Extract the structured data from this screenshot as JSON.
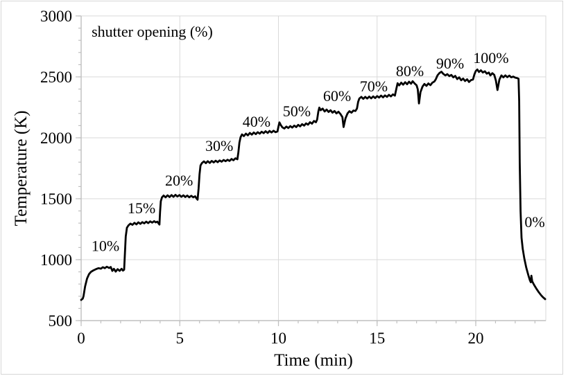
{
  "figure": {
    "background": "#ffffff",
    "border_color": "#d6d6d6"
  },
  "chart_data": {
    "type": "line",
    "title": "",
    "xlabel": "Time (min)",
    "ylabel": "Temperature (K)",
    "xlim": [
      0,
      23.55
    ],
    "ylim": [
      500,
      3000
    ],
    "x_ticks": [
      0,
      5,
      10,
      15,
      20
    ],
    "x_minor_step": 1,
    "y_ticks": [
      500,
      1000,
      1500,
      2000,
      2500,
      3000
    ],
    "y_minor_step": 100,
    "grid": true,
    "legend": "none",
    "line_color": "#000000",
    "gridline_color": "#d9d9d9",
    "axis_color": "#bfbfbf",
    "annotations": [
      {
        "text": "shutter opening (%)",
        "t": 0.53,
        "T": 2830,
        "anchor": "start",
        "size": 23
      },
      {
        "text": "10%",
        "t": 1.23,
        "T": 1070,
        "anchor": "middle",
        "size": 22
      },
      {
        "text": "15%",
        "t": 3.06,
        "T": 1380,
        "anchor": "middle",
        "size": 22
      },
      {
        "text": "20%",
        "t": 4.96,
        "T": 1608,
        "anchor": "middle",
        "size": 22
      },
      {
        "text": "30%",
        "t": 7.0,
        "T": 1892,
        "anchor": "middle",
        "size": 22
      },
      {
        "text": "40%",
        "t": 8.89,
        "T": 2090,
        "anchor": "middle",
        "size": 22
      },
      {
        "text": "50%",
        "t": 10.93,
        "T": 2176,
        "anchor": "middle",
        "size": 22
      },
      {
        "text": "60%",
        "t": 12.97,
        "T": 2300,
        "anchor": "middle",
        "size": 22
      },
      {
        "text": "70%",
        "t": 14.83,
        "T": 2380,
        "anchor": "middle",
        "size": 22
      },
      {
        "text": "80%",
        "t": 16.66,
        "T": 2505,
        "anchor": "middle",
        "size": 22
      },
      {
        "text": "90%",
        "t": 18.7,
        "T": 2568,
        "anchor": "middle",
        "size": 22
      },
      {
        "text": "100%",
        "t": 20.77,
        "T": 2613,
        "anchor": "middle",
        "size": 22
      },
      {
        "text": "0%",
        "t": 22.99,
        "T": 1267,
        "anchor": "middle",
        "size": 22
      }
    ],
    "series": [
      {
        "name": "temperature",
        "points": [
          [
            0,
            670
          ],
          [
            0.08,
            680
          ],
          [
            0.12,
            700
          ],
          [
            0.2,
            780
          ],
          [
            0.3,
            845
          ],
          [
            0.4,
            882
          ],
          [
            0.5,
            900
          ],
          [
            0.62,
            912
          ],
          [
            0.75,
            922
          ],
          [
            0.88,
            930
          ],
          [
            1.0,
            926
          ],
          [
            1.1,
            938
          ],
          [
            1.2,
            930
          ],
          [
            1.3,
            942
          ],
          [
            1.42,
            932
          ],
          [
            1.5,
            940
          ],
          [
            1.58,
            908
          ],
          [
            1.66,
            925
          ],
          [
            1.75,
            902
          ],
          [
            1.85,
            922
          ],
          [
            1.95,
            908
          ],
          [
            2.05,
            925
          ],
          [
            2.12,
            910
          ],
          [
            2.18,
            918
          ],
          [
            2.22,
            1060
          ],
          [
            2.26,
            1190
          ],
          [
            2.32,
            1262
          ],
          [
            2.4,
            1282
          ],
          [
            2.5,
            1296
          ],
          [
            2.6,
            1286
          ],
          [
            2.7,
            1302
          ],
          [
            2.8,
            1290
          ],
          [
            2.9,
            1306
          ],
          [
            3.0,
            1294
          ],
          [
            3.1,
            1308
          ],
          [
            3.2,
            1298
          ],
          [
            3.3,
            1312
          ],
          [
            3.4,
            1300
          ],
          [
            3.5,
            1314
          ],
          [
            3.6,
            1304
          ],
          [
            3.7,
            1316
          ],
          [
            3.78,
            1306
          ],
          [
            3.86,
            1312
          ],
          [
            3.93,
            1296
          ],
          [
            3.97,
            1288
          ],
          [
            4.0,
            1392
          ],
          [
            4.04,
            1480
          ],
          [
            4.1,
            1512
          ],
          [
            4.18,
            1526
          ],
          [
            4.28,
            1512
          ],
          [
            4.38,
            1528
          ],
          [
            4.48,
            1514
          ],
          [
            4.58,
            1530
          ],
          [
            4.68,
            1516
          ],
          [
            4.78,
            1532
          ],
          [
            4.88,
            1518
          ],
          [
            4.98,
            1530
          ],
          [
            5.08,
            1516
          ],
          [
            5.18,
            1528
          ],
          [
            5.28,
            1514
          ],
          [
            5.38,
            1526
          ],
          [
            5.48,
            1512
          ],
          [
            5.58,
            1524
          ],
          [
            5.68,
            1512
          ],
          [
            5.78,
            1520
          ],
          [
            5.85,
            1502
          ],
          [
            5.9,
            1492
          ],
          [
            5.95,
            1580
          ],
          [
            6.0,
            1700
          ],
          [
            6.05,
            1772
          ],
          [
            6.12,
            1792
          ],
          [
            6.22,
            1806
          ],
          [
            6.32,
            1792
          ],
          [
            6.42,
            1808
          ],
          [
            6.52,
            1794
          ],
          [
            6.62,
            1810
          ],
          [
            6.72,
            1798
          ],
          [
            6.82,
            1812
          ],
          [
            6.92,
            1800
          ],
          [
            7.02,
            1814
          ],
          [
            7.12,
            1804
          ],
          [
            7.22,
            1818
          ],
          [
            7.32,
            1808
          ],
          [
            7.42,
            1820
          ],
          [
            7.52,
            1810
          ],
          [
            7.62,
            1826
          ],
          [
            7.72,
            1816
          ],
          [
            7.82,
            1832
          ],
          [
            7.92,
            1824
          ],
          [
            7.97,
            1880
          ],
          [
            8.02,
            1960
          ],
          [
            8.08,
            2005
          ],
          [
            8.15,
            2028
          ],
          [
            8.25,
            2014
          ],
          [
            8.35,
            2034
          ],
          [
            8.45,
            2020
          ],
          [
            8.55,
            2040
          ],
          [
            8.65,
            2026
          ],
          [
            8.75,
            2044
          ],
          [
            8.85,
            2030
          ],
          [
            8.95,
            2046
          ],
          [
            9.05,
            2034
          ],
          [
            9.15,
            2050
          ],
          [
            9.25,
            2038
          ],
          [
            9.35,
            2054
          ],
          [
            9.45,
            2040
          ],
          [
            9.55,
            2056
          ],
          [
            9.65,
            2044
          ],
          [
            9.75,
            2058
          ],
          [
            9.85,
            2046
          ],
          [
            9.95,
            2052
          ],
          [
            10.0,
            2092
          ],
          [
            10.05,
            2126
          ],
          [
            10.12,
            2104
          ],
          [
            10.2,
            2086
          ],
          [
            10.3,
            2076
          ],
          [
            10.4,
            2092
          ],
          [
            10.5,
            2080
          ],
          [
            10.6,
            2096
          ],
          [
            10.7,
            2084
          ],
          [
            10.8,
            2100
          ],
          [
            10.9,
            2088
          ],
          [
            11.0,
            2106
          ],
          [
            11.1,
            2094
          ],
          [
            11.2,
            2112
          ],
          [
            11.3,
            2100
          ],
          [
            11.4,
            2118
          ],
          [
            11.5,
            2108
          ],
          [
            11.6,
            2128
          ],
          [
            11.7,
            2116
          ],
          [
            11.8,
            2138
          ],
          [
            11.9,
            2128
          ],
          [
            11.96,
            2150
          ],
          [
            12.02,
            2215
          ],
          [
            12.07,
            2248
          ],
          [
            12.14,
            2226
          ],
          [
            12.24,
            2240
          ],
          [
            12.34,
            2216
          ],
          [
            12.44,
            2232
          ],
          [
            12.54,
            2212
          ],
          [
            12.64,
            2226
          ],
          [
            12.74,
            2206
          ],
          [
            12.84,
            2220
          ],
          [
            12.94,
            2200
          ],
          [
            13.04,
            2214
          ],
          [
            13.14,
            2196
          ],
          [
            13.24,
            2170
          ],
          [
            13.3,
            2088
          ],
          [
            13.4,
            2160
          ],
          [
            13.5,
            2200
          ],
          [
            13.6,
            2218
          ],
          [
            13.7,
            2206
          ],
          [
            13.8,
            2224
          ],
          [
            13.9,
            2220
          ],
          [
            13.98,
            2240
          ],
          [
            14.04,
            2295
          ],
          [
            14.1,
            2322
          ],
          [
            14.2,
            2336
          ],
          [
            14.3,
            2320
          ],
          [
            14.4,
            2336
          ],
          [
            14.5,
            2322
          ],
          [
            14.6,
            2338
          ],
          [
            14.7,
            2324
          ],
          [
            14.8,
            2340
          ],
          [
            14.9,
            2326
          ],
          [
            15.0,
            2342
          ],
          [
            15.1,
            2330
          ],
          [
            15.2,
            2346
          ],
          [
            15.3,
            2332
          ],
          [
            15.4,
            2348
          ],
          [
            15.5,
            2336
          ],
          [
            15.6,
            2352
          ],
          [
            15.7,
            2340
          ],
          [
            15.8,
            2356
          ],
          [
            15.9,
            2346
          ],
          [
            15.98,
            2405
          ],
          [
            16.04,
            2448
          ],
          [
            16.12,
            2430
          ],
          [
            16.22,
            2452
          ],
          [
            16.32,
            2436
          ],
          [
            16.42,
            2456
          ],
          [
            16.52,
            2440
          ],
          [
            16.62,
            2460
          ],
          [
            16.72,
            2444
          ],
          [
            16.8,
            2464
          ],
          [
            16.9,
            2446
          ],
          [
            17.0,
            2430
          ],
          [
            17.06,
            2398
          ],
          [
            17.12,
            2282
          ],
          [
            17.2,
            2375
          ],
          [
            17.3,
            2420
          ],
          [
            17.4,
            2442
          ],
          [
            17.5,
            2426
          ],
          [
            17.6,
            2446
          ],
          [
            17.7,
            2432
          ],
          [
            17.8,
            2452
          ],
          [
            17.9,
            2462
          ],
          [
            17.98,
            2482
          ],
          [
            18.06,
            2512
          ],
          [
            18.16,
            2532
          ],
          [
            18.26,
            2542
          ],
          [
            18.36,
            2524
          ],
          [
            18.46,
            2512
          ],
          [
            18.56,
            2522
          ],
          [
            18.66,
            2506
          ],
          [
            18.76,
            2516
          ],
          [
            18.86,
            2496
          ],
          [
            18.96,
            2508
          ],
          [
            19.06,
            2482
          ],
          [
            19.16,
            2496
          ],
          [
            19.26,
            2472
          ],
          [
            19.36,
            2486
          ],
          [
            19.46,
            2466
          ],
          [
            19.56,
            2480
          ],
          [
            19.66,
            2458
          ],
          [
            19.76,
            2474
          ],
          [
            19.86,
            2478
          ],
          [
            19.93,
            2520
          ],
          [
            20.0,
            2548
          ],
          [
            20.08,
            2560
          ],
          [
            20.16,
            2540
          ],
          [
            20.26,
            2554
          ],
          [
            20.36,
            2536
          ],
          [
            20.46,
            2546
          ],
          [
            20.56,
            2526
          ],
          [
            20.66,
            2536
          ],
          [
            20.74,
            2512
          ],
          [
            20.84,
            2530
          ],
          [
            20.94,
            2516
          ],
          [
            21.02,
            2470
          ],
          [
            21.1,
            2392
          ],
          [
            21.2,
            2478
          ],
          [
            21.3,
            2512
          ],
          [
            21.4,
            2496
          ],
          [
            21.5,
            2512
          ],
          [
            21.6,
            2498
          ],
          [
            21.7,
            2510
          ],
          [
            21.8,
            2496
          ],
          [
            21.9,
            2502
          ],
          [
            22.0,
            2494
          ],
          [
            22.1,
            2490
          ],
          [
            22.17,
            2484
          ],
          [
            22.2,
            2300
          ],
          [
            22.23,
            1800
          ],
          [
            22.27,
            1400
          ],
          [
            22.32,
            1180
          ],
          [
            22.38,
            1090
          ],
          [
            22.46,
            1010
          ],
          [
            22.56,
            935
          ],
          [
            22.66,
            875
          ],
          [
            22.74,
            832
          ],
          [
            22.79,
            815
          ],
          [
            22.82,
            868
          ],
          [
            22.86,
            822
          ],
          [
            22.96,
            792
          ],
          [
            23.08,
            760
          ],
          [
            23.2,
            732
          ],
          [
            23.32,
            706
          ],
          [
            23.42,
            690
          ],
          [
            23.52,
            676
          ]
        ]
      }
    ]
  }
}
